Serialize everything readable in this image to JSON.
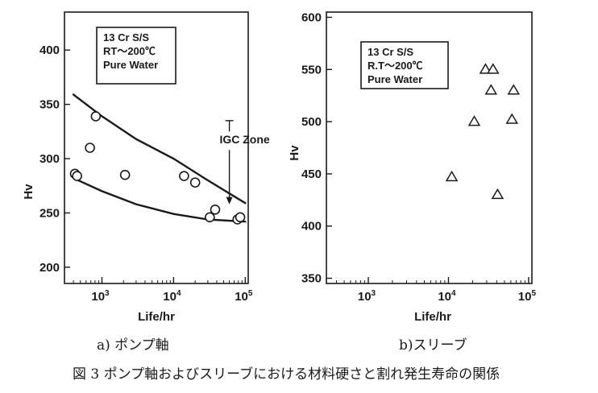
{
  "caption": "図 3 ポンプ軸およびスリーブにおける材料硬さと割れ発生寿命の関係",
  "chart_data": [
    {
      "type": "scatter",
      "subtitle": "a) ポンプ軸",
      "xlabel": "Life/hr",
      "ylabel": "Hv",
      "x_scale": "log",
      "xlim": [
        300,
        110000
      ],
      "ylim": [
        185,
        435
      ],
      "x_ticks": [
        {
          "label": "10",
          "exp": "3",
          "value": 1000
        },
        {
          "label": "10",
          "exp": "4",
          "value": 10000
        },
        {
          "label": "10",
          "exp": "5",
          "value": 100000
        }
      ],
      "y_ticks": [
        "200",
        "250",
        "300",
        "350",
        "400"
      ],
      "legend_box": [
        "13 Cr S/S",
        "RT～200℃",
        "Pure Water"
      ],
      "annotation": "IGC Zone",
      "marker": "circle",
      "points": [
        {
          "x": 420,
          "y": 286
        },
        {
          "x": 450,
          "y": 284
        },
        {
          "x": 680,
          "y": 310
        },
        {
          "x": 820,
          "y": 339
        },
        {
          "x": 2100,
          "y": 285
        },
        {
          "x": 14000,
          "y": 284
        },
        {
          "x": 20000,
          "y": 278
        },
        {
          "x": 32000,
          "y": 246
        },
        {
          "x": 38000,
          "y": 253
        },
        {
          "x": 78000,
          "y": 244
        },
        {
          "x": 85000,
          "y": 246
        }
      ],
      "upper_curve": [
        {
          "x": 400,
          "y": 359
        },
        {
          "x": 1000,
          "y": 339
        },
        {
          "x": 3000,
          "y": 318
        },
        {
          "x": 10000,
          "y": 300
        },
        {
          "x": 30000,
          "y": 280
        },
        {
          "x": 100000,
          "y": 259
        }
      ],
      "lower_curve": [
        {
          "x": 400,
          "y": 282
        },
        {
          "x": 1000,
          "y": 270
        },
        {
          "x": 3000,
          "y": 258
        },
        {
          "x": 10000,
          "y": 249
        },
        {
          "x": 30000,
          "y": 244
        },
        {
          "x": 100000,
          "y": 242
        }
      ]
    },
    {
      "type": "scatter",
      "subtitle": "b)スリーブ",
      "xlabel": "Life/hr",
      "ylabel": "Hv",
      "x_scale": "log",
      "xlim": [
        300,
        110000
      ],
      "ylim": [
        345,
        605
      ],
      "x_ticks": [
        {
          "label": "10",
          "exp": "3",
          "value": 1000
        },
        {
          "label": "10",
          "exp": "4",
          "value": 10000
        },
        {
          "label": "10",
          "exp": "5",
          "value": 100000
        }
      ],
      "y_ticks": [
        "350",
        "400",
        "450",
        "500",
        "550",
        "600"
      ],
      "legend_box": [
        "13 Cr S/S",
        "R.T～200℃",
        "Pure Water"
      ],
      "marker": "triangle",
      "points": [
        {
          "x": 11000,
          "y": 447
        },
        {
          "x": 21000,
          "y": 500
        },
        {
          "x": 29000,
          "y": 550
        },
        {
          "x": 34000,
          "y": 530
        },
        {
          "x": 36000,
          "y": 550
        },
        {
          "x": 41000,
          "y": 430
        },
        {
          "x": 62000,
          "y": 502
        },
        {
          "x": 65000,
          "y": 530
        }
      ]
    }
  ]
}
